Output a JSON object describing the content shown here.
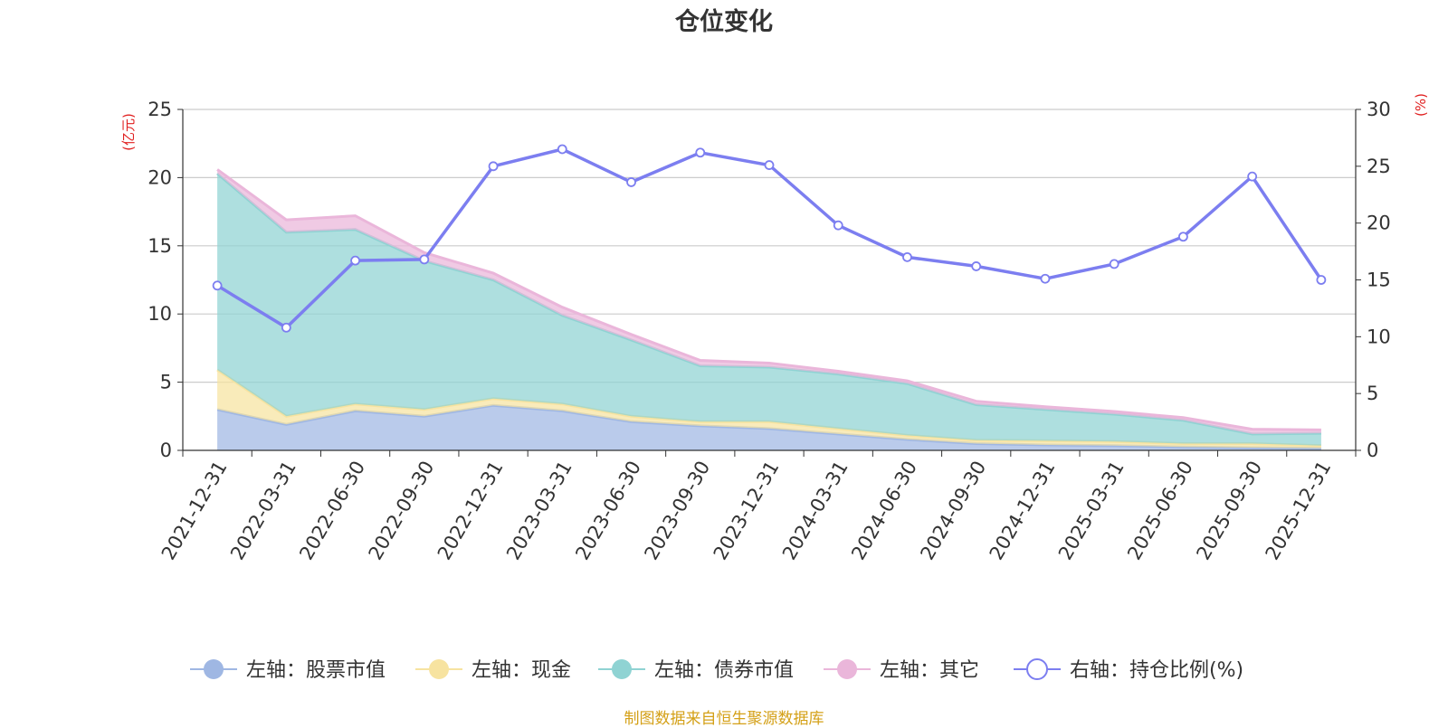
{
  "chart_data": {
    "type": "area",
    "title": "仓位变化",
    "left_axis_unit": "(亿元)",
    "right_axis_unit": "(%)",
    "categories": [
      "2021-12-31",
      "2022-03-31",
      "2022-06-30",
      "2022-09-30",
      "2022-12-31",
      "2023-03-31",
      "2023-06-30",
      "2023-09-30",
      "2023-12-31",
      "2024-03-31",
      "2024-06-30",
      "2024-09-30",
      "2024-12-31",
      "2025-03-31",
      "2025-06-30",
      "2025-09-30",
      "2025-12-31"
    ],
    "left_ylim": [
      0,
      25
    ],
    "left_yticks": [
      "0",
      "5",
      "10",
      "15",
      "20",
      "25"
    ],
    "right_ylim": [
      0,
      30
    ],
    "right_yticks": [
      "0",
      "5",
      "10",
      "15",
      "20",
      "25",
      "30"
    ],
    "series": [
      {
        "name": "左轴：股票市值",
        "axis": "left",
        "type": "stacked-area",
        "color": "#9fb7e3",
        "values": [
          3.0,
          1.9,
          2.9,
          2.5,
          3.3,
          2.9,
          2.1,
          1.8,
          1.6,
          1.2,
          0.8,
          0.5,
          0.4,
          0.35,
          0.25,
          0.2,
          0.15
        ]
      },
      {
        "name": "左轴：现金",
        "axis": "left",
        "type": "stacked-area",
        "color": "#f7e3a0",
        "values": [
          2.9,
          0.6,
          0.5,
          0.5,
          0.5,
          0.5,
          0.4,
          0.3,
          0.5,
          0.4,
          0.3,
          0.25,
          0.3,
          0.3,
          0.25,
          0.3,
          0.2
        ]
      },
      {
        "name": "左轴：债券市值",
        "axis": "left",
        "type": "stacked-area",
        "color": "#8fd3d3",
        "values": [
          14.4,
          13.5,
          12.8,
          10.9,
          8.7,
          6.5,
          5.6,
          4.1,
          4.0,
          4.0,
          3.8,
          2.6,
          2.3,
          2.0,
          1.7,
          0.7,
          0.9
        ]
      },
      {
        "name": "左轴：其它",
        "axis": "left",
        "type": "stacked-area",
        "color": "#eab6da",
        "values": [
          0.3,
          0.9,
          1.0,
          0.6,
          0.5,
          0.6,
          0.4,
          0.4,
          0.3,
          0.2,
          0.2,
          0.25,
          0.2,
          0.2,
          0.2,
          0.35,
          0.25
        ]
      },
      {
        "name": "右轴：持仓比例(%)",
        "axis": "right",
        "type": "line",
        "color": "#7c7ef0",
        "values": [
          14.5,
          10.8,
          16.7,
          16.8,
          25.0,
          26.5,
          23.6,
          26.2,
          25.1,
          19.8,
          17.0,
          16.2,
          15.1,
          16.4,
          18.8,
          24.1,
          15.0
        ]
      }
    ]
  },
  "source_text": "制图数据来自恒生聚源数据库"
}
